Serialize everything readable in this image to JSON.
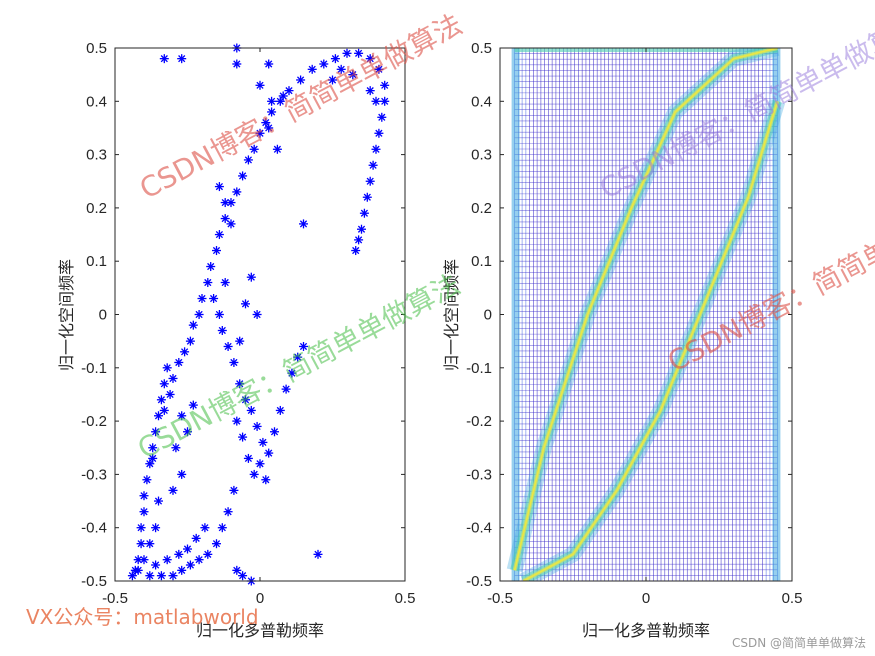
{
  "chart_data": [
    {
      "type": "scatter",
      "marker": "asterisk",
      "marker_color": "#0000ff",
      "xlabel": "归一化多普勒频率",
      "ylabel": "归一化空间频率",
      "xlim": [
        -0.5,
        0.5
      ],
      "ylim": [
        -0.5,
        0.5
      ],
      "xticks": [
        "-0.5",
        "0",
        "0.5"
      ],
      "yticks": [
        "0.5",
        "0.4",
        "0.3",
        "0.2",
        "0.1",
        "0",
        "-0.1",
        "-0.2",
        "-0.3",
        "-0.4",
        "-0.5"
      ],
      "grid": false,
      "series": [
        {
          "points": [
            [
              -0.43,
              -0.48
            ],
            [
              -0.42,
              -0.46
            ],
            [
              -0.41,
              -0.43
            ],
            [
              -0.41,
              -0.4
            ],
            [
              -0.4,
              -0.37
            ],
            [
              -0.4,
              -0.34
            ],
            [
              -0.39,
              -0.31
            ],
            [
              -0.38,
              -0.28
            ],
            [
              -0.37,
              -0.25
            ],
            [
              -0.36,
              -0.22
            ],
            [
              -0.35,
              -0.19
            ],
            [
              -0.34,
              -0.16
            ],
            [
              -0.33,
              -0.13
            ],
            [
              -0.32,
              -0.1
            ],
            [
              -0.33,
              -0.18
            ],
            [
              -0.31,
              -0.15
            ],
            [
              -0.3,
              -0.12
            ],
            [
              -0.28,
              -0.09
            ],
            [
              -0.26,
              -0.07
            ],
            [
              -0.24,
              -0.05
            ],
            [
              -0.23,
              -0.02
            ],
            [
              -0.21,
              0.0
            ],
            [
              -0.2,
              0.03
            ],
            [
              -0.18,
              0.06
            ],
            [
              -0.17,
              0.09
            ],
            [
              -0.15,
              0.12
            ],
            [
              -0.14,
              0.15
            ],
            [
              -0.12,
              0.18
            ],
            [
              -0.1,
              0.21
            ],
            [
              -0.08,
              0.23
            ],
            [
              -0.06,
              0.26
            ],
            [
              -0.04,
              0.29
            ],
            [
              -0.02,
              0.31
            ],
            [
              0.0,
              0.34
            ],
            [
              0.02,
              0.36
            ],
            [
              0.04,
              0.38
            ],
            [
              0.07,
              0.4
            ],
            [
              0.1,
              0.42
            ],
            [
              0.14,
              0.44
            ],
            [
              0.18,
              0.46
            ],
            [
              0.22,
              0.47
            ],
            [
              0.26,
              0.48
            ],
            [
              0.3,
              0.49
            ],
            [
              0.34,
              0.49
            ],
            [
              0.38,
              0.48
            ],
            [
              0.41,
              0.46
            ],
            [
              0.43,
              0.43
            ],
            [
              0.43,
              0.4
            ],
            [
              0.42,
              0.37
            ],
            [
              0.41,
              0.34
            ],
            [
              0.4,
              0.31
            ],
            [
              0.39,
              0.28
            ],
            [
              0.38,
              0.25
            ],
            [
              0.37,
              0.22
            ],
            [
              0.36,
              0.19
            ],
            [
              0.35,
              0.16
            ],
            [
              0.34,
              0.14
            ],
            [
              0.33,
              0.12
            ],
            [
              -0.14,
              0.24
            ],
            [
              -0.12,
              0.21
            ],
            [
              -0.1,
              0.17
            ],
            [
              -0.16,
              0.03
            ],
            [
              -0.14,
              0.0
            ],
            [
              -0.13,
              -0.03
            ],
            [
              -0.11,
              -0.06
            ],
            [
              -0.09,
              -0.09
            ],
            [
              -0.07,
              -0.13
            ],
            [
              -0.05,
              -0.16
            ],
            [
              -0.03,
              -0.18
            ],
            [
              -0.01,
              -0.21
            ],
            [
              0.01,
              -0.24
            ],
            [
              0.03,
              -0.26
            ],
            [
              0.05,
              -0.22
            ],
            [
              0.07,
              -0.18
            ],
            [
              0.09,
              -0.14
            ],
            [
              0.11,
              -0.11
            ],
            [
              0.13,
              -0.08
            ],
            [
              0.15,
              -0.06
            ],
            [
              -0.08,
              -0.2
            ],
            [
              -0.06,
              -0.23
            ],
            [
              -0.04,
              -0.27
            ],
            [
              -0.02,
              -0.3
            ],
            [
              0.0,
              -0.28
            ],
            [
              0.02,
              -0.31
            ],
            [
              -0.09,
              -0.33
            ],
            [
              -0.11,
              -0.37
            ],
            [
              -0.13,
              -0.4
            ],
            [
              -0.15,
              -0.43
            ],
            [
              -0.18,
              -0.45
            ],
            [
              -0.21,
              -0.46
            ],
            [
              -0.24,
              -0.47
            ],
            [
              -0.27,
              -0.48
            ],
            [
              -0.3,
              -0.49
            ],
            [
              -0.34,
              -0.49
            ],
            [
              -0.38,
              -0.49
            ],
            [
              -0.42,
              -0.48
            ],
            [
              -0.44,
              -0.49
            ],
            [
              -0.4,
              -0.46
            ],
            [
              -0.36,
              -0.47
            ],
            [
              -0.32,
              -0.46
            ],
            [
              -0.28,
              -0.45
            ],
            [
              -0.25,
              -0.44
            ],
            [
              -0.22,
              -0.42
            ],
            [
              -0.19,
              -0.4
            ],
            [
              -0.06,
              -0.49
            ],
            [
              -0.03,
              -0.5
            ],
            [
              -0.08,
              -0.48
            ],
            [
              -0.33,
              0.48
            ],
            [
              -0.27,
              0.48
            ],
            [
              -0.08,
              0.47
            ],
            [
              -0.08,
              0.5
            ],
            [
              0.03,
              0.47
            ],
            [
              0.0,
              0.43
            ],
            [
              0.04,
              0.4
            ],
            [
              0.08,
              0.41
            ],
            [
              0.03,
              0.35
            ],
            [
              0.06,
              0.31
            ],
            [
              0.15,
              0.17
            ],
            [
              0.2,
              -0.45
            ],
            [
              -0.03,
              0.07
            ],
            [
              -0.01,
              0.0
            ],
            [
              -0.07,
              -0.05
            ],
            [
              -0.05,
              0.02
            ],
            [
              -0.12,
              0.06
            ],
            [
              -0.27,
              -0.3
            ],
            [
              -0.3,
              -0.33
            ],
            [
              -0.29,
              -0.25
            ],
            [
              -0.27,
              -0.19
            ],
            [
              -0.25,
              -0.22
            ],
            [
              -0.23,
              -0.17
            ],
            [
              -0.36,
              -0.4
            ],
            [
              -0.38,
              -0.43
            ],
            [
              -0.35,
              -0.35
            ],
            [
              -0.37,
              -0.27
            ],
            [
              0.25,
              0.44
            ],
            [
              0.28,
              0.46
            ],
            [
              0.32,
              0.45
            ],
            [
              0.38,
              0.42
            ],
            [
              0.4,
              0.4
            ]
          ]
        }
      ]
    },
    {
      "type": "heatmap",
      "render": "contour",
      "colormap": [
        "#3b2bc9",
        "#4f6fe6",
        "#3fa8e0",
        "#4fd0b0",
        "#c7e36a",
        "#f3e83c"
      ],
      "xlabel": "归一化多普勒频率",
      "ylabel": "归一化空间频率",
      "xlim": [
        -0.5,
        0.5
      ],
      "ylim": [
        -0.5,
        0.5
      ],
      "xticks": [
        "-0.5",
        "0",
        "0.5"
      ],
      "yticks": [
        "0.5",
        "0.4",
        "0.3",
        "0.2",
        "0.1",
        "0",
        "-0.1",
        "-0.2",
        "-0.3",
        "-0.4",
        "-0.5"
      ],
      "grid": false,
      "support_x": [
        -0.45,
        0.45
      ],
      "ridges": [
        {
          "name_hidden": true,
          "points": [
            [
              -0.45,
              -0.48
            ],
            [
              -0.35,
              -0.25
            ],
            [
              -0.2,
              0.0
            ],
            [
              -0.05,
              0.2
            ],
            [
              0.1,
              0.38
            ],
            [
              0.3,
              0.48
            ],
            [
              0.45,
              0.5
            ]
          ]
        },
        {
          "name_hidden": true,
          "points": [
            [
              -0.42,
              -0.5
            ],
            [
              -0.25,
              -0.45
            ],
            [
              -0.1,
              -0.33
            ],
            [
              0.05,
              -0.18
            ],
            [
              0.2,
              0.02
            ],
            [
              0.35,
              0.22
            ],
            [
              0.45,
              0.4
            ]
          ]
        }
      ]
    }
  ],
  "watermarks": [
    {
      "text": "CSDN博客：简简单单做算法",
      "style": "red"
    },
    {
      "text": "CSDN博客：简简单单做算法",
      "style": "green"
    },
    {
      "text": "CSDN博客：简简单单做算法",
      "style": "violet"
    },
    {
      "text": "CSDN博客：简简单单做算法",
      "style": "red"
    },
    {
      "text": "VX公众号：matlabworld",
      "style": "orange"
    },
    {
      "text": "CSDN @简简单单做算法",
      "style": "gray"
    }
  ]
}
